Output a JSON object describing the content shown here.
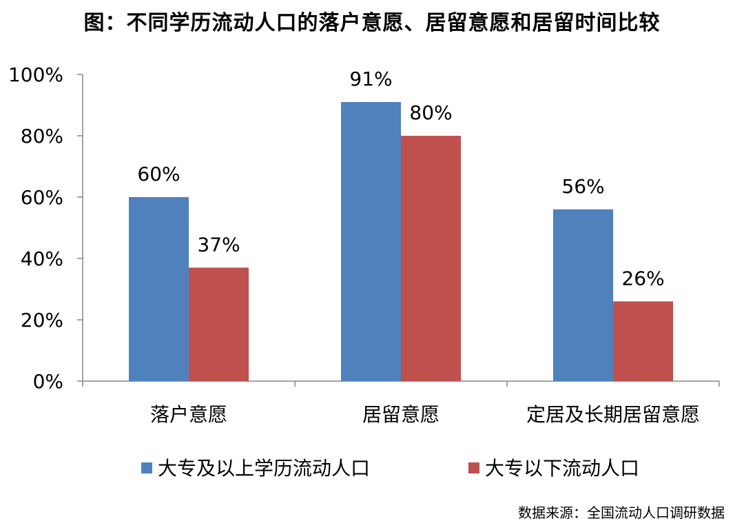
{
  "chart_data": {
    "type": "bar",
    "title": "图：不同学历流动人口的落户意愿、居留意愿和居留时间比较",
    "categories": [
      "落户意愿",
      "居留意愿",
      "定居及长期居留意愿"
    ],
    "series": [
      {
        "name": "大专及以上学历流动人口",
        "values": [
          60,
          91,
          56
        ],
        "labels": [
          "60%",
          "91%",
          "56%"
        ],
        "color": "#4F81BD"
      },
      {
        "name": "大专以下流动人口",
        "values": [
          37,
          80,
          26
        ],
        "labels": [
          "37%",
          "80%",
          "26%"
        ],
        "color": "#C0504D"
      }
    ],
    "yticks": [
      "0%",
      "20%",
      "40%",
      "60%",
      "80%",
      "100%"
    ],
    "ylim": [
      0,
      100
    ],
    "xlabel": "",
    "ylabel": "",
    "grid": false,
    "legend": "bottom"
  },
  "source_note": "数据来源：全国流动人口调研数据"
}
